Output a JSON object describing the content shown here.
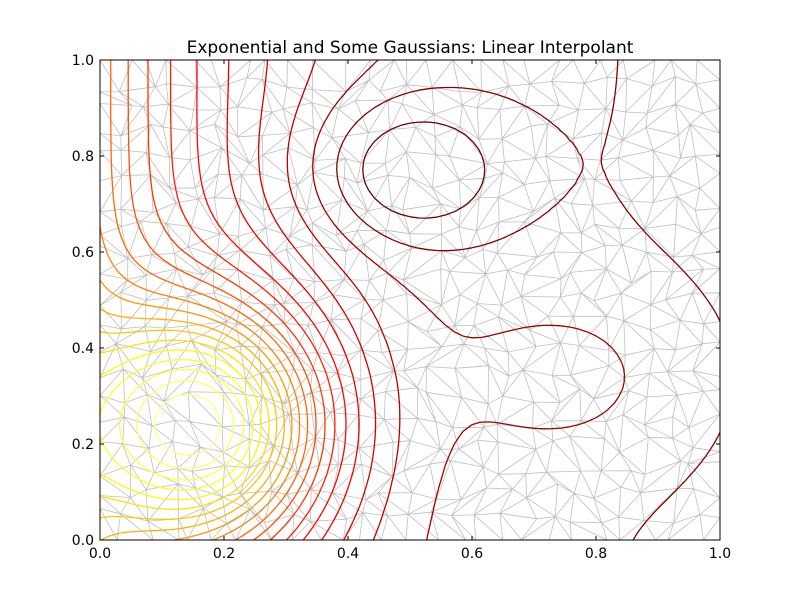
{
  "chart_data": {
    "type": "contour",
    "title": "Exponential and Some Gaussians: Linear Interpolant",
    "xlabel": "",
    "ylabel": "",
    "xlim": [
      0.0,
      1.0
    ],
    "ylim": [
      0.0,
      1.0
    ],
    "x_ticks": [
      "0.0",
      "0.2",
      "0.4",
      "0.6",
      "0.8",
      "1.0"
    ],
    "y_ticks": [
      "0.0",
      "0.2",
      "0.4",
      "0.6",
      "0.8",
      "1.0"
    ],
    "grid": false,
    "colormap": "hot",
    "mesh_color": "#a9a9a9",
    "underlay": "triangular mesh",
    "features": [
      {
        "kind": "peak",
        "center": [
          0.17,
          0.24
        ],
        "color": "#ffff40"
      },
      {
        "kind": "low",
        "center": [
          0.49,
          0.77
        ],
        "color": "#2a0000"
      },
      {
        "kind": "local",
        "center": [
          0.77,
          0.34
        ],
        "color": "#ff3300"
      }
    ]
  }
}
